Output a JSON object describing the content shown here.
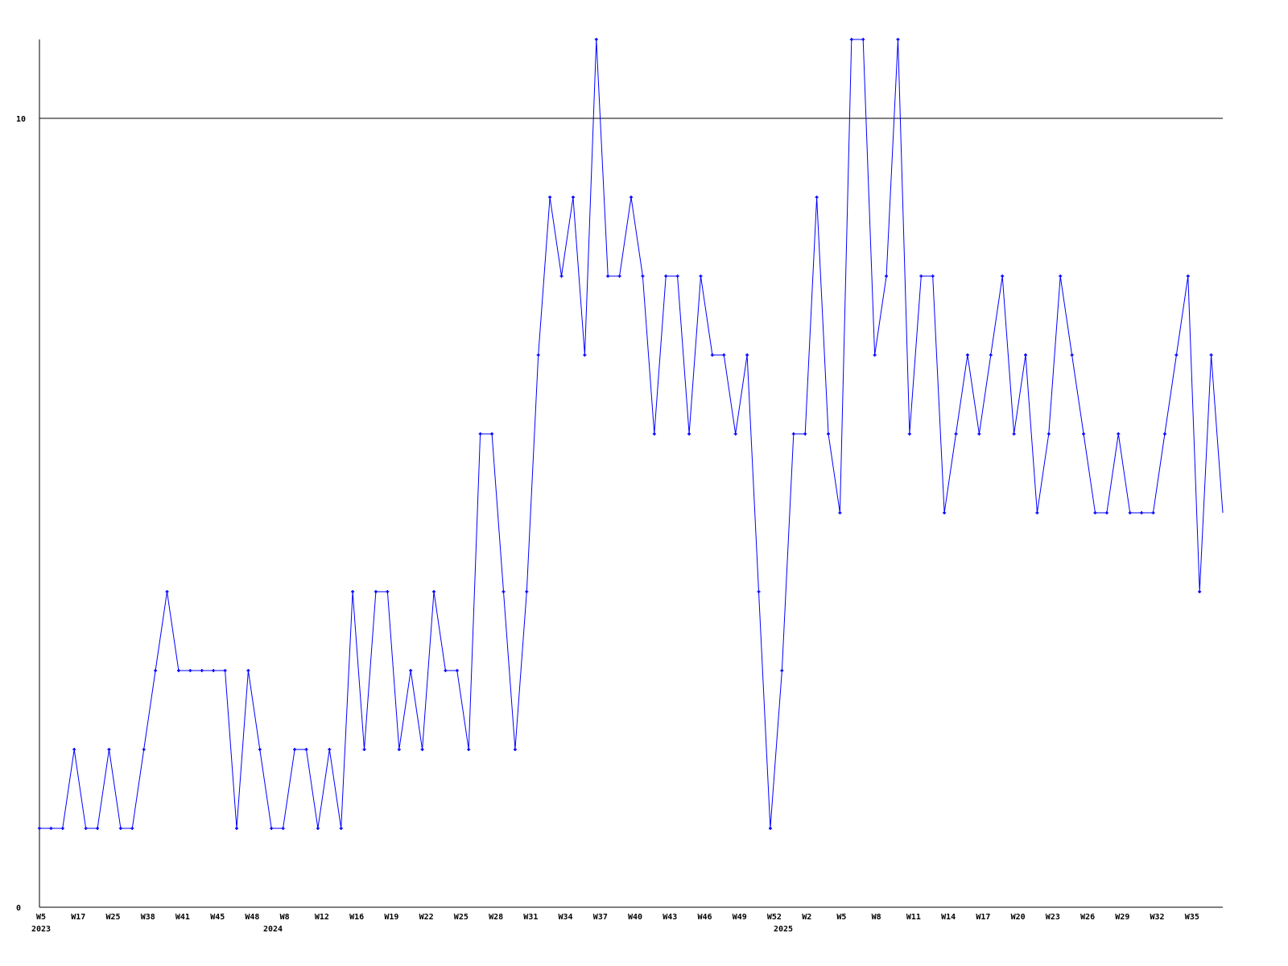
{
  "chart_data": {
    "type": "line",
    "title": "",
    "xlabel": "",
    "ylabel": "",
    "ylim": [
      0,
      11
    ],
    "y_ticks": [
      "0",
      "10"
    ],
    "grid": "horizontal line at 10",
    "line_color": "#0000ff",
    "x_tick_labels": [
      "W5",
      "W17",
      "W25",
      "W38",
      "W41",
      "W45",
      "W48",
      "W8",
      "W12",
      "W16",
      "W19",
      "W22",
      "W25",
      "W28",
      "W31",
      "W34",
      "W37",
      "W40",
      "W43",
      "W46",
      "W49",
      "W52",
      "W2",
      "W5",
      "W8",
      "W11",
      "W14",
      "W17",
      "W20",
      "W23",
      "W26",
      "W29",
      "W32",
      "W35"
    ],
    "year_labels": [
      {
        "label": "2023",
        "tick": "W5"
      },
      {
        "label": "2024",
        "tick": "W8"
      },
      {
        "label": "2025",
        "tick": "W2"
      }
    ],
    "series": [
      {
        "values": [
          1,
          1,
          1,
          2,
          1,
          1,
          2,
          1,
          1,
          2,
          3,
          4,
          3,
          3,
          3,
          3,
          3,
          1,
          3,
          2,
          1,
          1,
          2,
          2,
          1,
          2,
          1,
          4,
          2,
          4,
          4,
          2,
          3,
          2,
          4,
          3,
          3,
          2,
          6,
          6,
          4,
          2,
          4,
          7,
          9,
          8,
          9,
          7,
          11,
          8,
          8,
          9,
          8,
          6,
          8,
          8,
          6,
          8,
          7,
          7,
          6,
          7,
          4,
          1,
          3,
          6,
          6,
          9,
          6,
          5,
          11,
          11,
          7,
          8,
          11,
          6,
          8,
          8,
          5,
          6,
          7,
          6,
          7,
          8,
          6,
          7,
          5,
          6,
          8,
          7,
          6,
          5,
          5,
          6,
          5,
          5,
          5,
          6,
          7,
          8,
          4,
          7,
          5
        ]
      }
    ]
  }
}
